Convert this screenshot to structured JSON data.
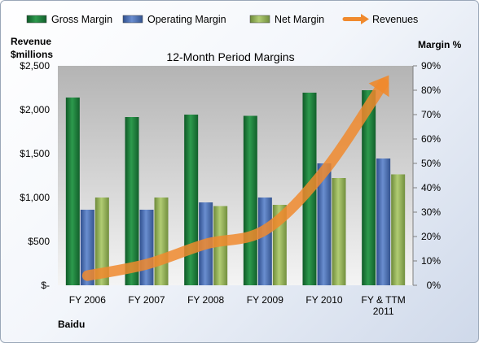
{
  "chart_data": {
    "type": "bar",
    "title": "12-Month Period Margins",
    "company_label": "Baidu",
    "left_axis": {
      "label_line1": "Revenue",
      "label_line2": "$millions",
      "min": 0,
      "max": 2500,
      "step": 500,
      "tick_labels": [
        "$-",
        "$500",
        "$1,000",
        "$1,500",
        "$2,000",
        "$2,500"
      ]
    },
    "right_axis": {
      "label": "Margin %",
      "min": 0,
      "max": 90,
      "step": 10,
      "tick_labels": [
        "0%",
        "10%",
        "20%",
        "30%",
        "40%",
        "50%",
        "60%",
        "70%",
        "80%",
        "90%"
      ]
    },
    "categories": [
      [
        "FY 2006"
      ],
      [
        "FY 2007"
      ],
      [
        "FY 2008"
      ],
      [
        "FY 2009"
      ],
      [
        "FY 2010"
      ],
      [
        "FY & TTM",
        "2011"
      ]
    ],
    "series": [
      {
        "name": "Gross Margin",
        "axis": "right",
        "kind": "bar",
        "color": "#1e7a3c",
        "values": [
          77,
          69,
          70,
          69.5,
          79,
          80
        ]
      },
      {
        "name": "Operating Margin",
        "axis": "right",
        "kind": "bar",
        "color": "#4a6fb5",
        "values": [
          31,
          31,
          34,
          36,
          50,
          52
        ]
      },
      {
        "name": "Net Margin",
        "axis": "right",
        "kind": "bar",
        "color": "#8fad55",
        "values": [
          36,
          36,
          32.5,
          33,
          44,
          45.5
        ]
      },
      {
        "name": "Revenues",
        "axis": "left",
        "kind": "arrow",
        "color": "#f08a2e",
        "values": [
          110,
          240,
          470,
          630,
          1300,
          2300
        ]
      }
    ],
    "grid": false,
    "legend_position": "top"
  }
}
